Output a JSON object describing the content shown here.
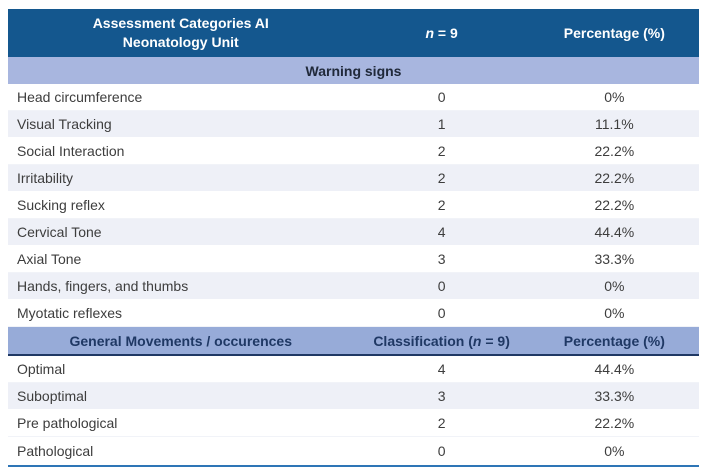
{
  "table": {
    "header": {
      "col1_line1": "Assessment Categories AI",
      "col1_line2": "Neonatology Unit",
      "col2_italic": "n",
      "col2_suffix": " = 9",
      "col3": "Percentage (%)"
    },
    "section1": {
      "title": "Warning signs",
      "rows": [
        {
          "label": "Head circumference",
          "n": "0",
          "pct": "0%"
        },
        {
          "label": "Visual Tracking",
          "n": "1",
          "pct": "11.1%"
        },
        {
          "label": "Social Interaction",
          "n": "2",
          "pct": "22.2%"
        },
        {
          "label": "Irritability",
          "n": "2",
          "pct": "22.2%"
        },
        {
          "label": "Sucking reflex",
          "n": "2",
          "pct": "22.2%"
        },
        {
          "label": "Cervical Tone",
          "n": "4",
          "pct": "44.4%"
        },
        {
          "label": "Axial Tone",
          "n": "3",
          "pct": "33.3%"
        },
        {
          "label": "Hands, fingers, and thumbs",
          "n": "0",
          "pct": "0%"
        },
        {
          "label": "Myotatic reflexes",
          "n": "0",
          "pct": "0%"
        }
      ]
    },
    "section2": {
      "header_col1": "General Movements / occurences",
      "header_col2_prefix": "Classification (",
      "header_col2_italic": "n",
      "header_col2_suffix": " = 9)",
      "header_col3": "Percentage (%)",
      "rows": [
        {
          "label": "Optimal",
          "n": "4",
          "pct": "44.4%"
        },
        {
          "label": "Suboptimal",
          "n": "3",
          "pct": "33.3%"
        },
        {
          "label": "Pre pathological",
          "n": "2",
          "pct": "22.2%"
        },
        {
          "label": "Pathological",
          "n": "0",
          "pct": "0%"
        }
      ]
    },
    "colors": {
      "header_bg": "#14578E",
      "header_text": "#FFFFFF",
      "section1_band_bg": "#A8B6DF",
      "section2_header_bg": "#97ABD8",
      "section2_border": "#1F3864",
      "alt_row_bg": "#EEF0F7",
      "row_text": "#3D3D3D",
      "bottom_line": "#2E75B6"
    }
  }
}
